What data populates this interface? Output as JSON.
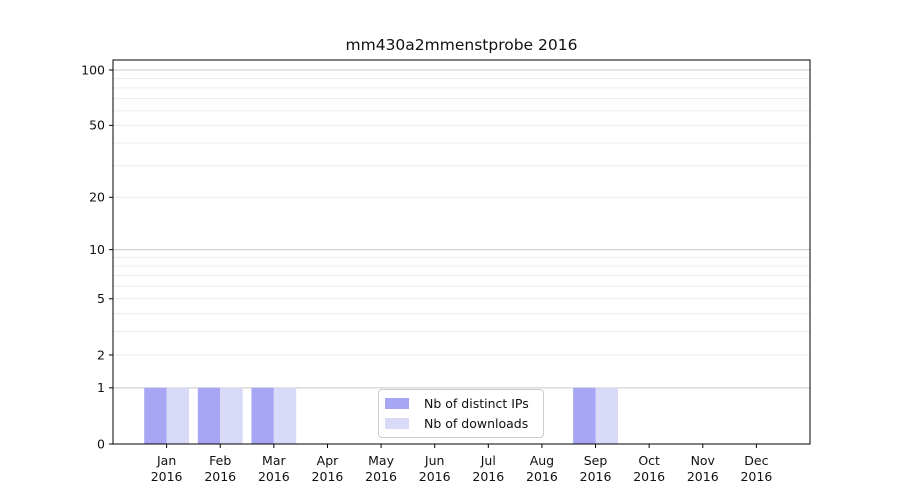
{
  "title": "mm430a2mmenstprobe 2016",
  "chart_data": {
    "type": "bar",
    "title": "mm430a2mmenstprobe 2016",
    "months": [
      "Jan",
      "Feb",
      "Mar",
      "Apr",
      "May",
      "Jun",
      "Jul",
      "Aug",
      "Sep",
      "Oct",
      "Nov",
      "Dec"
    ],
    "year": "2016",
    "series": [
      {
        "name": "Nb of distinct IPs",
        "color": "#a6a6f4",
        "values": [
          1,
          1,
          1,
          0,
          0,
          0,
          0,
          0,
          1,
          0,
          0,
          0
        ]
      },
      {
        "name": "Nb of downloads",
        "color": "#d9d9f8",
        "values": [
          1,
          1,
          1,
          0,
          0,
          0,
          0,
          0,
          1,
          0,
          0,
          0
        ]
      }
    ],
    "yscale": "log1p",
    "ylim": [
      0,
      113
    ],
    "yticks": [
      0,
      1,
      2,
      5,
      10,
      20,
      50,
      100
    ],
    "grid": {
      "major": [
        1,
        10,
        100
      ],
      "minor": [
        2,
        3,
        4,
        5,
        6,
        7,
        8,
        9,
        20,
        30,
        40,
        50,
        60,
        70,
        80,
        90
      ]
    },
    "legend_position": "lower center",
    "colors": {
      "spine": "#000000",
      "grid_major": "#c8c8c8",
      "grid_minor": "#ececec",
      "tick_text": "#111111"
    }
  }
}
